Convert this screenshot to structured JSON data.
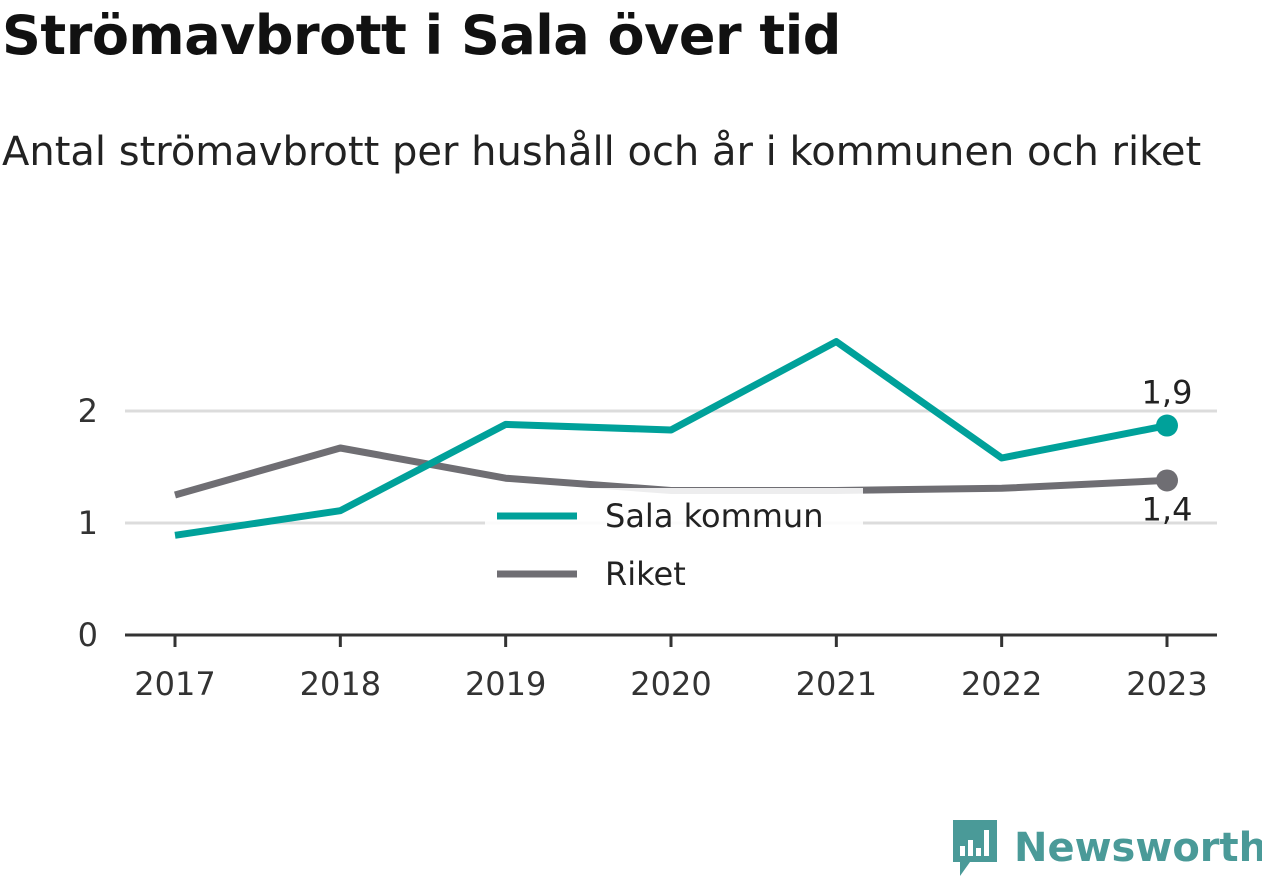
{
  "chart_data": {
    "type": "line",
    "title": "Strömavbrott i Sala över tid",
    "subtitle": "Antal strömavbrott per hushåll och år i kommunen och riket",
    "xlabel": "",
    "ylabel": "",
    "x": [
      "2017",
      "2018",
      "2019",
      "2020",
      "2021",
      "2022",
      "2023"
    ],
    "ylim": [
      0,
      2.5
    ],
    "yticks": [
      0,
      1,
      2
    ],
    "ytick_labels": [
      "0",
      "1",
      "2"
    ],
    "grid": true,
    "legend_position": "center",
    "series": [
      {
        "name": "Sala kommun",
        "color": "#00a19a",
        "values": [
          0.89,
          1.11,
          1.88,
          1.83,
          2.62,
          1.58,
          1.87
        ],
        "end_label": "1,9"
      },
      {
        "name": "Riket",
        "color": "#6f6e73",
        "values": [
          1.25,
          1.67,
          1.4,
          1.29,
          1.29,
          1.31,
          1.38
        ],
        "end_label": "1,4"
      }
    ]
  },
  "branding": {
    "logo_text": "Newsworthy",
    "logo_icon": "bar-chart-flag-icon",
    "logo_color": "#4a9a98"
  }
}
